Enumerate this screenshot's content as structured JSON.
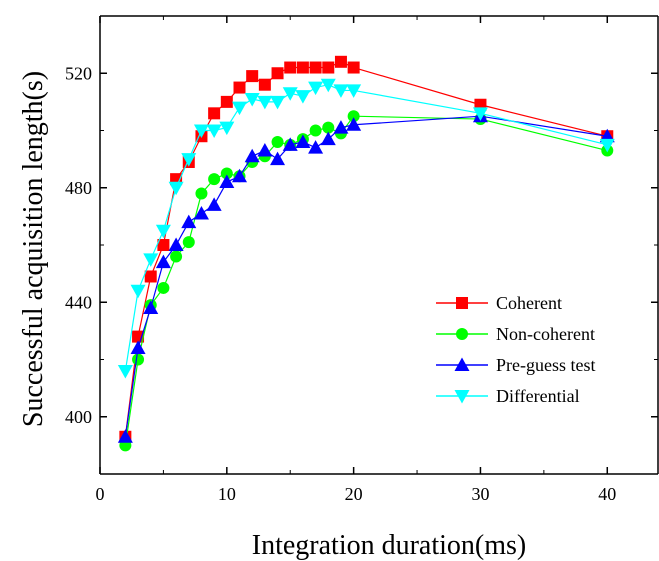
{
  "chart_data": {
    "type": "line",
    "title": "",
    "xlabel": "Integration duration(ms)",
    "ylabel": "Successful acquisition length(s)",
    "xlim": [
      0,
      44
    ],
    "ylim": [
      380,
      540
    ],
    "xticks": [
      0,
      10,
      20,
      30,
      40
    ],
    "yticks": [
      400,
      440,
      480,
      520
    ],
    "grid": false,
    "legend_position": "center-right",
    "series": [
      {
        "name": "Coherent",
        "color": "#ff0000",
        "marker": "square",
        "x": [
          2,
          3,
          4,
          5,
          6,
          7,
          8,
          9,
          10,
          11,
          12,
          13,
          14,
          15,
          16,
          17,
          18,
          19,
          20,
          30,
          40
        ],
        "values": [
          393,
          428,
          449,
          460,
          483,
          489,
          498,
          506,
          510,
          515,
          519,
          516,
          520,
          522,
          522,
          522,
          522,
          524,
          522,
          509,
          498
        ]
      },
      {
        "name": "Non-coherent",
        "color": "#00ff00",
        "marker": "circle",
        "x": [
          2,
          3,
          4,
          5,
          6,
          7,
          8,
          9,
          10,
          11,
          12,
          13,
          14,
          15,
          16,
          17,
          18,
          19,
          20,
          30,
          40
        ],
        "values": [
          390,
          420,
          439,
          445,
          456,
          461,
          478,
          483,
          485,
          484,
          489,
          491,
          496,
          495,
          497,
          500,
          501,
          499,
          505,
          504,
          493
        ]
      },
      {
        "name": "Pre-guess test",
        "color": "#0000ff",
        "marker": "triangle-up",
        "x": [
          2,
          3,
          4,
          5,
          6,
          7,
          8,
          9,
          10,
          11,
          12,
          13,
          14,
          15,
          16,
          17,
          18,
          19,
          20,
          30,
          40
        ],
        "values": [
          393,
          424,
          438,
          454,
          460,
          468,
          471,
          474,
          482,
          484,
          491,
          493,
          490,
          495,
          496,
          494,
          497,
          501,
          502,
          505,
          498
        ]
      },
      {
        "name": "Differential",
        "color": "#00ffff",
        "marker": "triangle-down",
        "x": [
          2,
          3,
          4,
          5,
          6,
          7,
          8,
          9,
          10,
          11,
          12,
          13,
          14,
          15,
          16,
          17,
          18,
          19,
          20,
          30,
          40
        ],
        "values": [
          416,
          444,
          455,
          465,
          480,
          490,
          500,
          500,
          501,
          508,
          511,
          510,
          510,
          513,
          512,
          515,
          516,
          514,
          514,
          506,
          495
        ]
      }
    ]
  }
}
